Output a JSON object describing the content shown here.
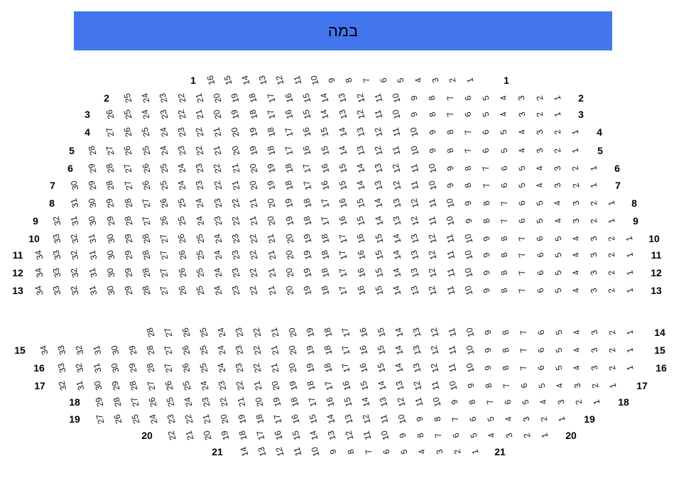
{
  "stage": {
    "label": "במה",
    "banner_color": "#4376ee",
    "text_color": "#000000"
  },
  "seat_text_color": "#141414",
  "rows": [
    {
      "label": "1",
      "has_left_label": true,
      "seats": [
        16,
        15,
        14,
        13,
        12,
        11,
        10,
        9,
        8,
        7,
        6,
        5,
        4,
        3,
        2,
        1
      ]
    },
    {
      "label": "2",
      "has_left_label": true,
      "seats": [
        25,
        24,
        23,
        22,
        21,
        20,
        19,
        18,
        17,
        16,
        15,
        14,
        13,
        12,
        11,
        10,
        9,
        8,
        7,
        6,
        5,
        4,
        3,
        2,
        1
      ]
    },
    {
      "label": "3",
      "has_left_label": true,
      "seats": [
        26,
        25,
        24,
        23,
        22,
        21,
        20,
        19,
        18,
        17,
        16,
        15,
        14,
        13,
        12,
        11,
        10,
        9,
        8,
        7,
        6,
        5,
        4,
        3,
        2,
        1
      ]
    },
    {
      "label": "4",
      "has_left_label": true,
      "seats": [
        27,
        26,
        25,
        24,
        23,
        22,
        21,
        20,
        19,
        18,
        17,
        16,
        15,
        14,
        13,
        12,
        11,
        10,
        9,
        8,
        7,
        6,
        5,
        4,
        3,
        2,
        1
      ]
    },
    {
      "label": "5",
      "has_left_label": true,
      "seats": [
        28,
        27,
        26,
        25,
        24,
        23,
        22,
        21,
        20,
        19,
        18,
        17,
        16,
        15,
        14,
        13,
        12,
        11,
        10,
        9,
        8,
        7,
        6,
        5,
        4,
        3,
        2,
        1
      ]
    },
    {
      "label": "6",
      "has_left_label": true,
      "seats": [
        29,
        28,
        27,
        26,
        25,
        24,
        23,
        22,
        21,
        20,
        19,
        18,
        17,
        16,
        15,
        14,
        13,
        12,
        11,
        10,
        9,
        8,
        7,
        6,
        5,
        4,
        3,
        2,
        1
      ]
    },
    {
      "label": "7",
      "has_left_label": true,
      "seats": [
        30,
        29,
        28,
        27,
        26,
        25,
        24,
        23,
        22,
        21,
        20,
        19,
        18,
        17,
        16,
        15,
        14,
        13,
        12,
        11,
        10,
        9,
        8,
        7,
        6,
        5,
        4,
        3,
        2,
        1
      ]
    },
    {
      "label": "8",
      "has_left_label": true,
      "seats": [
        31,
        30,
        29,
        28,
        27,
        26,
        25,
        24,
        23,
        22,
        21,
        20,
        19,
        18,
        17,
        16,
        15,
        14,
        13,
        12,
        11,
        10,
        9,
        8,
        7,
        6,
        5,
        4,
        3,
        2,
        1
      ]
    },
    {
      "label": "9",
      "has_left_label": true,
      "seats": [
        32,
        31,
        30,
        29,
        28,
        27,
        26,
        25,
        24,
        23,
        22,
        21,
        20,
        19,
        18,
        17,
        16,
        15,
        14,
        13,
        12,
        11,
        10,
        9,
        8,
        7,
        6,
        5,
        4,
        3,
        2,
        1
      ]
    },
    {
      "label": "10",
      "has_left_label": true,
      "seats": [
        33,
        32,
        31,
        30,
        29,
        28,
        27,
        26,
        25,
        24,
        23,
        22,
        21,
        20,
        19,
        18,
        17,
        16,
        15,
        14,
        13,
        12,
        11,
        10,
        9,
        8,
        7,
        6,
        5,
        4,
        3,
        2,
        1
      ]
    },
    {
      "label": "11",
      "has_left_label": true,
      "seats": [
        34,
        33,
        32,
        31,
        30,
        29,
        28,
        27,
        26,
        25,
        24,
        23,
        22,
        21,
        20,
        19,
        18,
        17,
        16,
        15,
        14,
        13,
        12,
        11,
        10,
        9,
        8,
        7,
        6,
        5,
        4,
        3,
        2,
        1
      ]
    },
    {
      "label": "12",
      "has_left_label": true,
      "seats": [
        34,
        33,
        32,
        31,
        30,
        29,
        28,
        27,
        26,
        25,
        24,
        23,
        22,
        21,
        20,
        19,
        18,
        17,
        16,
        15,
        14,
        13,
        12,
        11,
        10,
        9,
        8,
        7,
        6,
        5,
        4,
        3,
        2,
        1
      ]
    },
    {
      "label": "13",
      "has_left_label": true,
      "seats": [
        34,
        33,
        32,
        31,
        30,
        29,
        28,
        27,
        26,
        25,
        24,
        23,
        22,
        21,
        20,
        19,
        18,
        17,
        16,
        15,
        14,
        13,
        12,
        11,
        10,
        9,
        8,
        7,
        6,
        5,
        4,
        3,
        2,
        1
      ]
    },
    {
      "label": "14",
      "has_left_label": false,
      "seats": [
        28,
        27,
        26,
        25,
        24,
        23,
        22,
        21,
        20,
        19,
        18,
        17,
        16,
        15,
        14,
        13,
        12,
        11,
        10,
        9,
        8,
        7,
        6,
        5,
        4,
        3,
        2,
        1
      ]
    },
    {
      "label": "15",
      "has_left_label": true,
      "seats": [
        34,
        33,
        32,
        31,
        30,
        29,
        28,
        27,
        26,
        25,
        24,
        23,
        22,
        21,
        20,
        19,
        18,
        17,
        16,
        15,
        14,
        13,
        12,
        11,
        10,
        9,
        8,
        7,
        6,
        5,
        4,
        3,
        2,
        1
      ]
    },
    {
      "label": "16",
      "has_left_label": true,
      "seats": [
        33,
        32,
        31,
        30,
        29,
        28,
        27,
        26,
        25,
        24,
        23,
        22,
        21,
        20,
        19,
        18,
        17,
        16,
        15,
        14,
        13,
        12,
        11,
        10,
        9,
        8,
        7,
        6,
        5,
        4,
        3,
        2,
        1
      ]
    },
    {
      "label": "17",
      "has_left_label": true,
      "seats": [
        32,
        31,
        30,
        29,
        28,
        27,
        26,
        25,
        24,
        23,
        22,
        21,
        20,
        19,
        18,
        17,
        16,
        15,
        14,
        13,
        12,
        11,
        10,
        9,
        8,
        7,
        6,
        5,
        4,
        3,
        2,
        1
      ]
    },
    {
      "label": "18",
      "has_left_label": true,
      "seats": [
        29,
        28,
        27,
        26,
        25,
        24,
        23,
        22,
        21,
        20,
        19,
        18,
        17,
        16,
        15,
        14,
        13,
        12,
        11,
        10,
        9,
        8,
        7,
        6,
        5,
        4,
        3,
        2,
        1
      ]
    },
    {
      "label": "19",
      "has_left_label": true,
      "seats": [
        27,
        26,
        25,
        24,
        23,
        22,
        21,
        20,
        19,
        18,
        17,
        16,
        15,
        14,
        13,
        12,
        11,
        10,
        9,
        8,
        7,
        6,
        5,
        4,
        3,
        2,
        1
      ]
    },
    {
      "label": "20",
      "has_left_label": true,
      "seats": [
        22,
        21,
        20,
        19,
        18,
        17,
        16,
        15,
        14,
        13,
        12,
        11,
        10,
        9,
        8,
        7,
        6,
        5,
        4,
        3,
        2,
        1
      ]
    },
    {
      "label": "21",
      "has_left_label": true,
      "seats": [
        14,
        13,
        12,
        11,
        10,
        9,
        8,
        7,
        6,
        5,
        4,
        3,
        2,
        1
      ]
    }
  ]
}
